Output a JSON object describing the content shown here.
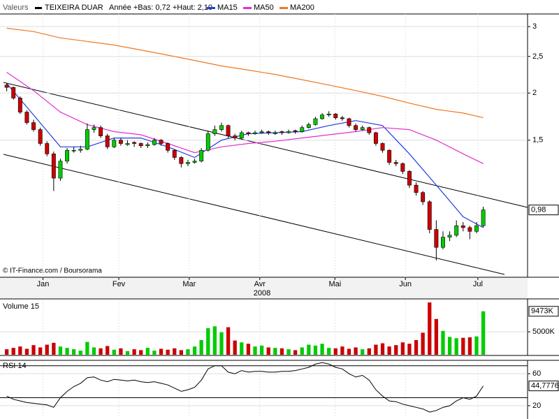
{
  "chart_data": [
    {
      "type": "candlestick",
      "header": "Valeurs",
      "title": "TEIXEIRA DUAR",
      "subtitle": "Année +Bas: 0,72 +Haut: 2,10",
      "source": "© IT-Finance.com / Boursorama",
      "year_label": "2008",
      "log_scale": true,
      "grid": true,
      "ylim": [
        0.65,
        3.24
      ],
      "yticks": [
        3,
        {
          "value": 2.5,
          "label": "2,5"
        },
        2,
        {
          "value": 1.5,
          "label": "1,5"
        }
      ],
      "xlim": [
        -1,
        77.6
      ],
      "xticks": [
        {
          "value": 5.4,
          "label": "Jan"
        },
        {
          "value": 16.7,
          "label": "Fev"
        },
        {
          "value": 27.2,
          "label": "Mar"
        },
        {
          "value": 37.7,
          "label": "Avr"
        },
        {
          "value": 48.9,
          "label": "Mai"
        },
        {
          "value": 59.4,
          "label": "Jun"
        },
        {
          "value": 70.2,
          "label": "Jul"
        }
      ],
      "up_color": "#00cc00",
      "down_color": "#cc0000",
      "color": "#000000",
      "candles": [
        [
          2.1,
          2.12,
          2.02,
          2.07
        ],
        [
          2.07,
          2.08,
          1.92,
          1.94
        ],
        [
          1.94,
          1.96,
          1.76,
          1.78
        ],
        [
          1.78,
          1.8,
          1.65,
          1.67
        ],
        [
          1.67,
          1.7,
          1.58,
          1.6
        ],
        [
          1.6,
          1.62,
          1.45,
          1.47
        ],
        [
          1.47,
          1.49,
          1.36,
          1.38
        ],
        [
          1.38,
          1.4,
          1.1,
          1.19
        ],
        [
          1.19,
          1.34,
          1.17,
          1.32
        ],
        [
          1.32,
          1.43,
          1.3,
          1.41
        ],
        [
          1.41,
          1.44,
          1.39,
          1.41
        ],
        [
          1.41,
          1.45,
          1.39,
          1.42
        ],
        [
          1.42,
          1.66,
          1.41,
          1.6
        ],
        [
          1.6,
          1.65,
          1.57,
          1.62
        ],
        [
          1.62,
          1.64,
          1.52,
          1.54
        ],
        [
          1.54,
          1.56,
          1.42,
          1.44
        ],
        [
          1.44,
          1.52,
          1.43,
          1.5
        ],
        [
          1.5,
          1.52,
          1.45,
          1.47
        ],
        [
          1.46,
          1.5,
          1.45,
          1.47
        ],
        [
          1.48,
          1.49,
          1.44,
          1.47
        ],
        [
          1.47,
          1.48,
          1.43,
          1.45
        ],
        [
          1.45,
          1.48,
          1.43,
          1.46
        ],
        [
          1.46,
          1.52,
          1.45,
          1.5
        ],
        [
          1.5,
          1.51,
          1.45,
          1.47
        ],
        [
          1.47,
          1.48,
          1.39,
          1.41
        ],
        [
          1.41,
          1.42,
          1.33,
          1.35
        ],
        [
          1.35,
          1.36,
          1.27,
          1.3
        ],
        [
          1.3,
          1.33,
          1.28,
          1.31
        ],
        [
          1.31,
          1.34,
          1.3,
          1.32
        ],
        [
          1.32,
          1.43,
          1.31,
          1.41
        ],
        [
          1.41,
          1.59,
          1.4,
          1.56
        ],
        [
          1.56,
          1.64,
          1.54,
          1.6
        ],
        [
          1.6,
          1.67,
          1.58,
          1.64
        ],
        [
          1.64,
          1.65,
          1.52,
          1.54
        ],
        [
          1.54,
          1.56,
          1.5,
          1.52
        ],
        [
          1.52,
          1.59,
          1.51,
          1.57
        ],
        [
          1.57,
          1.58,
          1.54,
          1.56
        ],
        [
          1.56,
          1.59,
          1.55,
          1.57
        ],
        [
          1.57,
          1.6,
          1.56,
          1.58
        ],
        [
          1.58,
          1.59,
          1.55,
          1.57
        ],
        [
          1.56,
          1.59,
          1.55,
          1.57
        ],
        [
          1.58,
          1.59,
          1.55,
          1.57
        ],
        [
          1.57,
          1.6,
          1.56,
          1.58
        ],
        [
          1.59,
          1.6,
          1.56,
          1.58
        ],
        [
          1.58,
          1.64,
          1.57,
          1.62
        ],
        [
          1.62,
          1.67,
          1.61,
          1.65
        ],
        [
          1.65,
          1.73,
          1.64,
          1.71
        ],
        [
          1.71,
          1.77,
          1.7,
          1.75
        ],
        [
          1.75,
          1.79,
          1.73,
          1.76
        ],
        [
          1.76,
          1.77,
          1.7,
          1.72
        ],
        [
          1.72,
          1.74,
          1.69,
          1.71
        ],
        [
          1.71,
          1.72,
          1.62,
          1.64
        ],
        [
          1.64,
          1.66,
          1.58,
          1.6
        ],
        [
          1.6,
          1.64,
          1.59,
          1.62
        ],
        [
          1.62,
          1.63,
          1.55,
          1.57
        ],
        [
          1.57,
          1.58,
          1.45,
          1.47
        ],
        [
          1.47,
          1.48,
          1.39,
          1.41
        ],
        [
          1.41,
          1.42,
          1.29,
          1.31
        ],
        [
          1.31,
          1.33,
          1.28,
          1.3
        ],
        [
          1.3,
          1.31,
          1.22,
          1.24
        ],
        [
          1.24,
          1.25,
          1.12,
          1.14
        ],
        [
          1.14,
          1.16,
          1.07,
          1.09
        ],
        [
          1.09,
          1.1,
          1.01,
          1.03
        ],
        [
          1.03,
          1.04,
          0.85,
          0.87
        ],
        [
          0.87,
          0.92,
          0.72,
          0.78
        ],
        [
          0.78,
          0.86,
          0.77,
          0.83
        ],
        [
          0.83,
          0.86,
          0.81,
          0.84
        ],
        [
          0.84,
          0.92,
          0.83,
          0.89
        ],
        [
          0.89,
          0.91,
          0.86,
          0.88
        ],
        [
          0.88,
          0.89,
          0.82,
          0.86
        ],
        [
          0.86,
          0.91,
          0.85,
          0.89
        ],
        [
          0.89,
          1.0,
          0.88,
          0.98
        ]
      ],
      "last_value_label": "0,98",
      "ma_x": [
        0,
        4,
        8,
        12,
        16,
        20,
        24,
        28,
        32,
        36,
        40,
        44,
        48,
        52,
        56,
        60,
        64,
        68,
        71
      ],
      "series": [
        {
          "name": "MA15",
          "color": "#1f3fdd",
          "values": [
            2.12,
            1.75,
            1.44,
            1.44,
            1.52,
            1.52,
            1.44,
            1.35,
            1.5,
            1.56,
            1.57,
            1.58,
            1.64,
            1.69,
            1.64,
            1.38,
            1.14,
            0.94,
            0.88
          ]
        },
        {
          "name": "MA50",
          "color": "#e030d0",
          "values": [
            2.27,
            2.03,
            1.78,
            1.65,
            1.58,
            1.55,
            1.47,
            1.39,
            1.44,
            1.47,
            1.49,
            1.52,
            1.55,
            1.58,
            1.62,
            1.6,
            1.5,
            1.38,
            1.3
          ]
        },
        {
          "name": "MA200",
          "color": "#f07820",
          "values": [
            2.97,
            2.91,
            2.8,
            2.74,
            2.68,
            2.6,
            2.52,
            2.44,
            2.36,
            2.3,
            2.24,
            2.17,
            2.1,
            2.03,
            1.96,
            1.88,
            1.81,
            1.77,
            1.72
          ]
        }
      ]
    },
    {
      "type": "bar",
      "title": "Volume 15",
      "ylim": [
        0,
        11875
      ],
      "yticks": [
        {
          "value": 5000,
          "label": "5000K"
        }
      ],
      "values": [
        1200,
        1500,
        1800,
        1300,
        2100,
        1600,
        2200,
        2600,
        1800,
        1500,
        1200,
        900,
        2800,
        1600,
        1400,
        1900,
        1100,
        1400,
        800,
        1200,
        1000,
        1500,
        900,
        1300,
        1100,
        1400,
        1000,
        1200,
        1800,
        3200,
        5800,
        6200,
        4900,
        6000,
        3100,
        2700,
        2400,
        1800,
        2000,
        1600,
        1500,
        1400,
        1200,
        1000,
        1600,
        2200,
        2000,
        2400,
        1500,
        1400,
        1800,
        1300,
        1600,
        1200,
        1400,
        2200,
        2500,
        1800,
        2100,
        2700,
        2400,
        3200,
        4800,
        11400,
        7800,
        5200,
        3900,
        3600,
        3700,
        3800,
        4000,
        9473
      ],
      "last_value_label": "9473K"
    },
    {
      "type": "line",
      "title": "RSI 14",
      "color": "#000000",
      "ylim": [
        6,
        75
      ],
      "yticks": [
        60,
        20
      ],
      "levels": [
        70,
        30
      ],
      "values": [
        32,
        28,
        26,
        24,
        23,
        22,
        21,
        18,
        30,
        38,
        44,
        48,
        55,
        56,
        52,
        50,
        53,
        52,
        51,
        52,
        50,
        49,
        50,
        48,
        46,
        42,
        38,
        40,
        43,
        52,
        66,
        70,
        70,
        62,
        60,
        64,
        62,
        63,
        63,
        62,
        62,
        63,
        63,
        64,
        66,
        68,
        72,
        74,
        72,
        68,
        66,
        60,
        56,
        58,
        52,
        40,
        32,
        26,
        25,
        22,
        20,
        18,
        16,
        12,
        14,
        18,
        20,
        26,
        30,
        28,
        32,
        44.7776
      ],
      "last_value_label": "44,7776"
    }
  ]
}
